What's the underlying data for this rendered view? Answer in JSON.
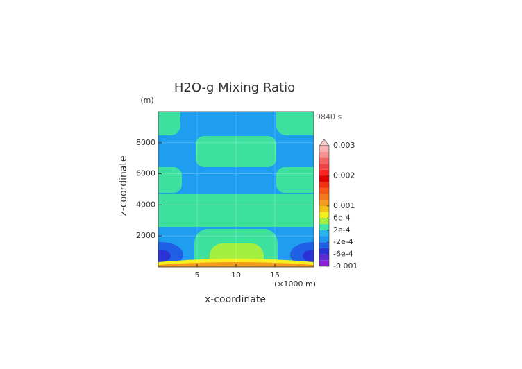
{
  "chart_data": {
    "type": "contour",
    "title": "H2O-g Mixing Ratio",
    "y_unit": "(m)",
    "x_unit": "(×1000 m)",
    "time_label": "9840 s",
    "x_label": "x-coordinate",
    "y_label": "z-coordinate",
    "xlim": [
      0,
      20
    ],
    "ylim": [
      0,
      10000
    ],
    "xticks": [
      5,
      10,
      15
    ],
    "yticks": [
      2000,
      4000,
      6000,
      8000
    ],
    "grid": true,
    "colorbar": {
      "levels": [
        -0.001,
        -0.0008,
        -0.0006,
        -0.0004,
        -0.0002,
        0,
        0.0002,
        0.0004,
        0.0006,
        0.0008,
        0.001,
        0.0012,
        0.0014,
        0.0016,
        0.0018,
        0.002,
        0.0022,
        0.0024,
        0.0026,
        0.0028,
        0.003
      ],
      "colors": [
        "#8a1fd6",
        "#5a2bd4",
        "#2a32d8",
        "#1f60e6",
        "#1f96f0",
        "#28b4f0",
        "#40e8a8",
        "#a4f040",
        "#f4f020",
        "#f4c414",
        "#f49a1c",
        "#f47a1c",
        "#f45814",
        "#f03010",
        "#e00000",
        "#ff2424",
        "#f04444",
        "#f46464",
        "#f49090",
        "#f8b0b0"
      ],
      "extend_color": "#f8c8c8",
      "ticks": [
        {
          "value": -0.001,
          "label": "-0.001"
        },
        {
          "value": -0.0006,
          "label": "-6e-4"
        },
        {
          "value": -0.0002,
          "label": "-2e-4"
        },
        {
          "value": 0.0002,
          "label": "2e-4"
        },
        {
          "value": 0.0006,
          "label": "6e-4"
        },
        0.001,
        0.002,
        0.003
      ]
    }
  }
}
